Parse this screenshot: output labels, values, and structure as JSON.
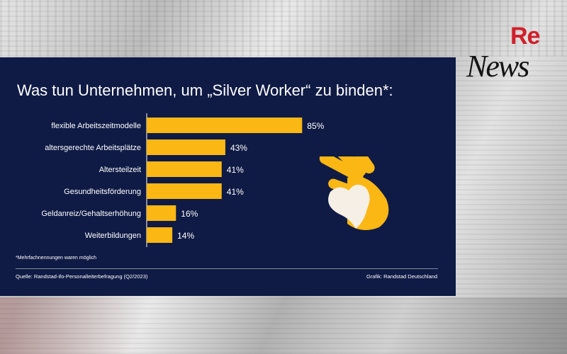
{
  "logo": {
    "re": "Re",
    "news": "News"
  },
  "card": {
    "title": "Was tun Unternehmen, um „Silver Worker“ zu binden*:",
    "footnote": "*Mehrfachnennungen waren möglich",
    "source": "Quelle: Randstad-ifo-Personalleiterbefragung (Q2/2023)",
    "credit": "Grafik: Randstad Deutschland",
    "icon": "hand-heart-icon"
  },
  "colors": {
    "background": "#0f1b45",
    "bar": "#fbb714",
    "text": "#ffffff",
    "heart": "#f5efe6"
  },
  "chart_data": {
    "type": "bar",
    "orientation": "horizontal",
    "title": "Was tun Unternehmen, um „Silver Worker“ zu binden*:",
    "categories": [
      "flexible Arbeitszeitmodelle",
      "altersgerechte Arbeitsplätze",
      "Altersteilzeit",
      "Gesundheitsförderung",
      "Geldanreiz/Gehaltserhöhung",
      "Weiterbildungen"
    ],
    "values": [
      85,
      43,
      41,
      41,
      16,
      14
    ],
    "value_labels": [
      "85%",
      "43%",
      "41%",
      "41%",
      "16%",
      "14%"
    ],
    "unit": "%",
    "xlim": [
      0,
      100
    ],
    "grid": false,
    "legend": "none"
  }
}
